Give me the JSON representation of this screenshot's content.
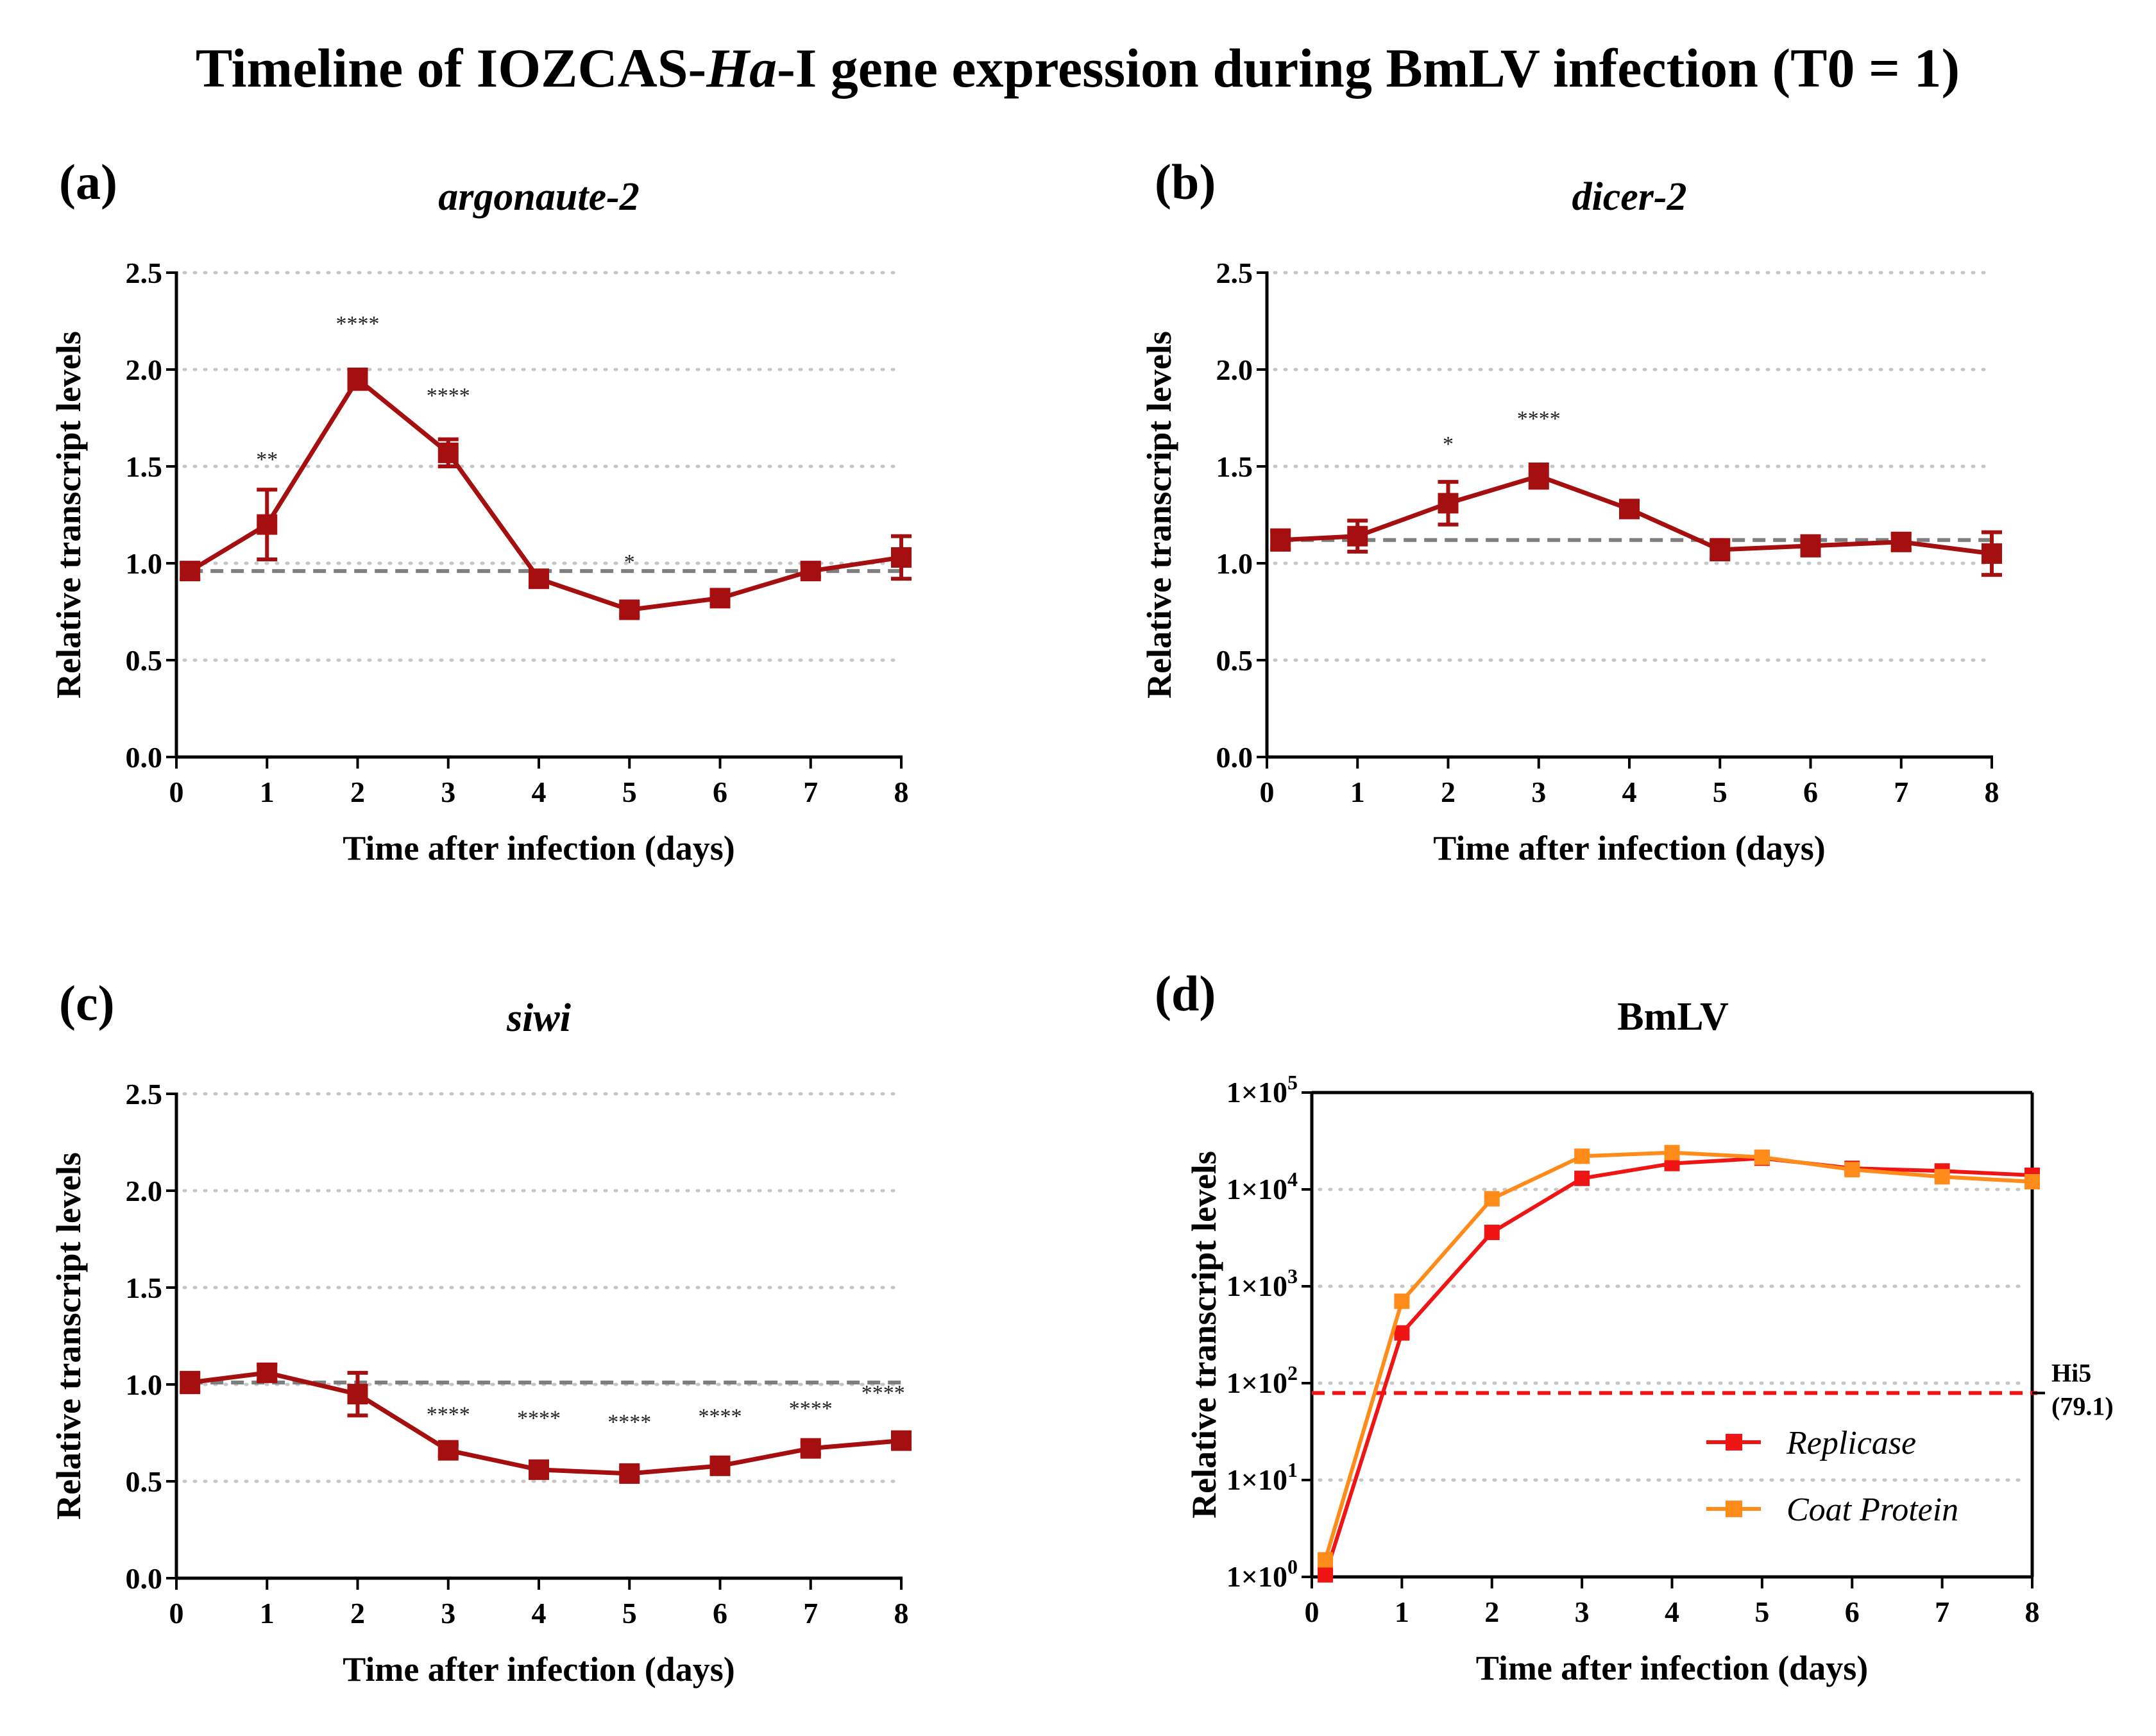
{
  "figure_title": {
    "before": "Timeline of IOZCAS-",
    "italic": "Ha",
    "after": "-I gene expression during BmLV infection (T0 = 1)"
  },
  "colors": {
    "series_main": "#a50f0f",
    "replicase": "#f01515",
    "coat_protein": "#ff8c1a",
    "reference": "#7f7f7f",
    "grid": "#c6c6c6",
    "hi5_line": "#f01515"
  },
  "chart_data": [
    {
      "id": "a",
      "type": "line",
      "panel_label": "(a)",
      "title": "argonaute-2",
      "title_italic": true,
      "xlabel": "Time after infection (days)",
      "ylabel": "Relative transcript levels",
      "xlim": [
        0,
        8
      ],
      "ylim": [
        0,
        2.5
      ],
      "xticks": [
        "0",
        "1",
        "2",
        "3",
        "4",
        "5",
        "6",
        "7",
        "8"
      ],
      "yticks": [
        "0.0",
        "0.5",
        "1.0",
        "1.5",
        "2.0",
        "2.5"
      ],
      "grid": "horizontal dotted",
      "reference_line": 0.96,
      "series": [
        {
          "name": "argonaute-2",
          "x": [
            0.15,
            1,
            2,
            3,
            4,
            5,
            6,
            7,
            8
          ],
          "y": [
            0.96,
            1.2,
            1.95,
            1.57,
            0.92,
            0.76,
            0.82,
            0.96,
            1.03
          ],
          "err": [
            0.04,
            0.18,
            0.05,
            0.07,
            0.03,
            0.03,
            0.02,
            0.03,
            0.11
          ]
        }
      ],
      "annotations": [
        {
          "x": 1,
          "y": 1.5,
          "text": "**"
        },
        {
          "x": 2,
          "y": 2.2,
          "text": "****"
        },
        {
          "x": 3,
          "y": 1.83,
          "text": "****"
        },
        {
          "x": 5,
          "y": 0.97,
          "text": "*"
        }
      ]
    },
    {
      "id": "b",
      "type": "line",
      "panel_label": "(b)",
      "title": "dicer-2",
      "title_italic": true,
      "xlabel": "Time after infection (days)",
      "ylabel": "Relative transcript levels",
      "xlim": [
        0,
        8
      ],
      "ylim": [
        0,
        2.5
      ],
      "xticks": [
        "0",
        "1",
        "2",
        "3",
        "4",
        "5",
        "6",
        "7",
        "8"
      ],
      "yticks": [
        "0.0",
        "0.5",
        "1.0",
        "1.5",
        "2.0",
        "2.5"
      ],
      "grid": "horizontal dotted",
      "reference_line": 1.12,
      "series": [
        {
          "name": "dicer-2",
          "x": [
            0.15,
            1,
            2,
            3,
            4,
            5,
            6,
            7,
            8
          ],
          "y": [
            1.12,
            1.14,
            1.31,
            1.45,
            1.28,
            1.07,
            1.09,
            1.11,
            1.05
          ],
          "err": [
            0.05,
            0.08,
            0.11,
            0.06,
            0.04,
            0.05,
            0.05,
            0.04,
            0.11
          ]
        }
      ],
      "annotations": [
        {
          "x": 2,
          "y": 1.58,
          "text": "*"
        },
        {
          "x": 3,
          "y": 1.71,
          "text": "****"
        }
      ]
    },
    {
      "id": "c",
      "type": "line",
      "panel_label": "(c)",
      "title": "siwi",
      "title_italic": true,
      "xlabel": "Time after infection (days)",
      "ylabel": "Relative transcript levels",
      "xlim": [
        0,
        8
      ],
      "ylim": [
        0,
        2.5
      ],
      "xticks": [
        "0",
        "1",
        "2",
        "3",
        "4",
        "5",
        "6",
        "7",
        "8"
      ],
      "yticks": [
        "0.0",
        "0.5",
        "1.0",
        "1.5",
        "2.0",
        "2.5"
      ],
      "grid": "horizontal dotted",
      "reference_line": 1.01,
      "series": [
        {
          "name": "siwi",
          "x": [
            0.15,
            1,
            2,
            3,
            4,
            5,
            6,
            7,
            8
          ],
          "y": [
            1.01,
            1.06,
            0.95,
            0.66,
            0.56,
            0.54,
            0.58,
            0.67,
            0.71
          ],
          "err": [
            0.05,
            0.04,
            0.11,
            0.03,
            0.03,
            0.03,
            0.03,
            0.03,
            0.03
          ]
        }
      ],
      "annotations": [
        {
          "x": 3,
          "y": 0.81,
          "text": "****"
        },
        {
          "x": 4,
          "y": 0.79,
          "text": "****"
        },
        {
          "x": 5,
          "y": 0.77,
          "text": "****"
        },
        {
          "x": 6,
          "y": 0.8,
          "text": "****"
        },
        {
          "x": 7,
          "y": 0.84,
          "text": "****"
        },
        {
          "x": 7.8,
          "y": 0.92,
          "text": "****"
        }
      ]
    },
    {
      "id": "d",
      "type": "line",
      "panel_label": "(d)",
      "title": "BmLV",
      "title_italic": false,
      "xlabel": "Time after infection (days)",
      "ylabel": "Relative transcript levels",
      "yscale": "log",
      "xlim": [
        0,
        8
      ],
      "ylim": [
        1,
        100000
      ],
      "xticks": [
        "0",
        "1",
        "2",
        "3",
        "4",
        "5",
        "6",
        "7",
        "8"
      ],
      "yticks": [
        {
          "value": 1,
          "base": "1×10",
          "exp": "0"
        },
        {
          "value": 10,
          "base": "1×10",
          "exp": "1"
        },
        {
          "value": 100,
          "base": "1×10",
          "exp": "2"
        },
        {
          "value": 1000,
          "base": "1×10",
          "exp": "3"
        },
        {
          "value": 10000,
          "base": "1×10",
          "exp": "4"
        },
        {
          "value": 100000,
          "base": "1×10",
          "exp": "5"
        }
      ],
      "grid": "horizontal dotted",
      "reference_line": 79.1,
      "reference_label_1": "Hi5",
      "reference_label_2": "(79.1)",
      "legend_position": "lower-right",
      "series": [
        {
          "name": "Replicase",
          "x": [
            0.15,
            1,
            2,
            3,
            4,
            5,
            6,
            7,
            8
          ],
          "y": [
            1.05,
            330,
            3600,
            13000,
            18500,
            21000,
            16500,
            15500,
            14000
          ]
        },
        {
          "name": "Coat Protein",
          "x": [
            0.15,
            1,
            2,
            3,
            4,
            5,
            6,
            7,
            8
          ],
          "y": [
            1.5,
            700,
            8000,
            22000,
            24000,
            21500,
            16000,
            13500,
            12000
          ]
        }
      ]
    }
  ]
}
